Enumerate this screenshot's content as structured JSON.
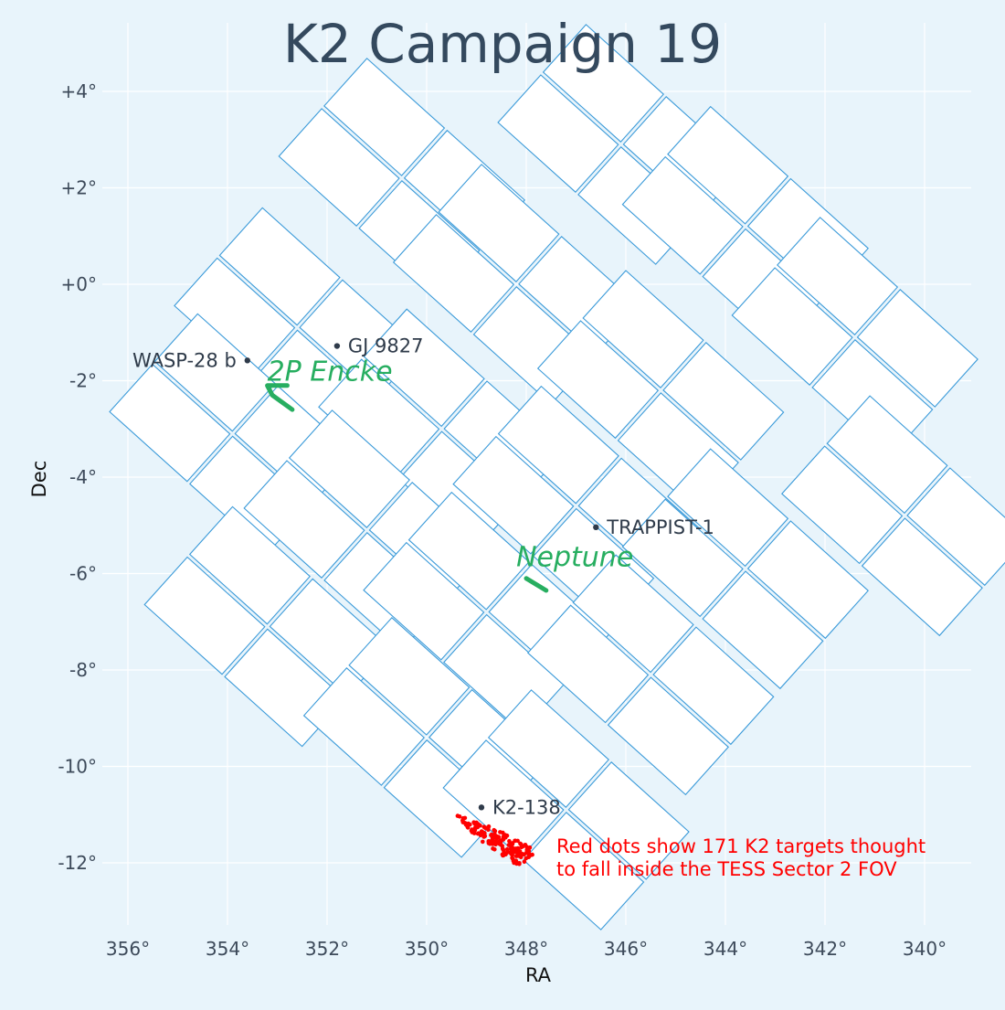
{
  "chart_data": {
    "type": "scatter",
    "title": "K2 Campaign 19",
    "xlabel": "RA",
    "ylabel": "Dec",
    "xlim": [
      356,
      340
    ],
    "ylim": [
      -12,
      4
    ],
    "xticks": [
      {
        "v": 356,
        "label": "356°"
      },
      {
        "v": 354,
        "label": "354°"
      },
      {
        "v": 352,
        "label": "352°"
      },
      {
        "v": 350,
        "label": "350°"
      },
      {
        "v": 348,
        "label": "348°"
      },
      {
        "v": 346,
        "label": "346°"
      },
      {
        "v": 344,
        "label": "344°"
      },
      {
        "v": 342,
        "label": "342°"
      },
      {
        "v": 340,
        "label": "340°"
      }
    ],
    "yticks": [
      {
        "v": 4,
        "label": "+4°"
      },
      {
        "v": 2,
        "label": "+2°"
      },
      {
        "v": 0,
        "label": "+0°"
      },
      {
        "v": -2,
        "label": "-2°"
      },
      {
        "v": -4,
        "label": "-4°"
      },
      {
        "v": -6,
        "label": "-6°"
      },
      {
        "v": -8,
        "label": "-8°"
      },
      {
        "v": -10,
        "label": "-10°"
      },
      {
        "v": -12,
        "label": "-12°"
      }
    ],
    "grid": true,
    "colors": {
      "background": "#e8f4fb",
      "ccd_outline": "#3a9ad9",
      "ccd_fill": "#ffffff",
      "title": "#34495e",
      "solar_system": "#27ae60",
      "k2_targets": "#ff0000",
      "star": "#2f3b4a"
    },
    "ccd_modules": [
      {
        "name": "module-1",
        "center": [
          350.5,
          2.2
        ]
      },
      {
        "name": "module-2",
        "center": [
          346.1,
          2.9
        ]
      },
      {
        "name": "module-3",
        "center": [
          352.6,
          -0.9
        ]
      },
      {
        "name": "module-4",
        "center": [
          348.2,
          0.0
        ]
      },
      {
        "name": "module-5",
        "center": [
          343.6,
          1.2
        ]
      },
      {
        "name": "module-6",
        "center": [
          353.9,
          -3.1
        ]
      },
      {
        "name": "module-7",
        "center": [
          349.7,
          -3.0
        ]
      },
      {
        "name": "module-8",
        "center": [
          345.3,
          -2.2
        ]
      },
      {
        "name": "module-9",
        "center": [
          341.4,
          -1.1
        ]
      },
      {
        "name": "module-10",
        "center": [
          351.2,
          -5.1
        ]
      },
      {
        "name": "module-11",
        "center": [
          347.0,
          -4.6
        ]
      },
      {
        "name": "module-12",
        "center": [
          343.6,
          -5.9
        ]
      },
      {
        "name": "module-13",
        "center": [
          340.4,
          -4.8
        ]
      },
      {
        "name": "module-14",
        "center": [
          353.2,
          -7.1
        ]
      },
      {
        "name": "module-15",
        "center": [
          348.8,
          -6.8
        ]
      },
      {
        "name": "module-16",
        "center": [
          345.5,
          -8.1
        ]
      },
      {
        "name": "module-17",
        "center": [
          350.0,
          -9.4
        ]
      },
      {
        "name": "module-18",
        "center": [
          347.2,
          -10.9
        ]
      }
    ],
    "stars": [
      {
        "name": "WASP-28 b",
        "ra": 353.6,
        "dec": -1.58,
        "label_side": "left"
      },
      {
        "name": "GJ 9827",
        "ra": 351.8,
        "dec": -1.28,
        "label_side": "right"
      },
      {
        "name": "TRAPPIST-1",
        "ra": 346.6,
        "dec": -5.04,
        "label_side": "right"
      },
      {
        "name": "K2-138",
        "ra": 348.9,
        "dec": -10.85,
        "label_side": "right"
      }
    ],
    "solar_system_bodies": [
      {
        "name": "2P Encke",
        "track": [
          [
            352.7,
            -2.6
          ],
          [
            353.1,
            -2.3
          ],
          [
            353.2,
            -2.1
          ],
          [
            352.8,
            -2.1
          ]
        ],
        "label_pos": [
          353.2,
          -2.0
        ]
      },
      {
        "name": "Neptune",
        "track": [
          [
            348.0,
            -6.1
          ],
          [
            347.6,
            -6.35
          ]
        ],
        "label_pos": [
          348.2,
          -5.85
        ]
      }
    ],
    "k2_targets_in_tess": {
      "count": 171,
      "region_corners": [
        [
          349.4,
          -11.0
        ],
        [
          348.6,
          -11.3
        ],
        [
          347.8,
          -11.75
        ],
        [
          348.1,
          -12.1
        ],
        [
          349.0,
          -11.5
        ]
      ]
    },
    "annotation": [
      "Red dots show 171 K2 targets thought",
      "to fall inside the TESS Sector 2 FOV"
    ]
  }
}
